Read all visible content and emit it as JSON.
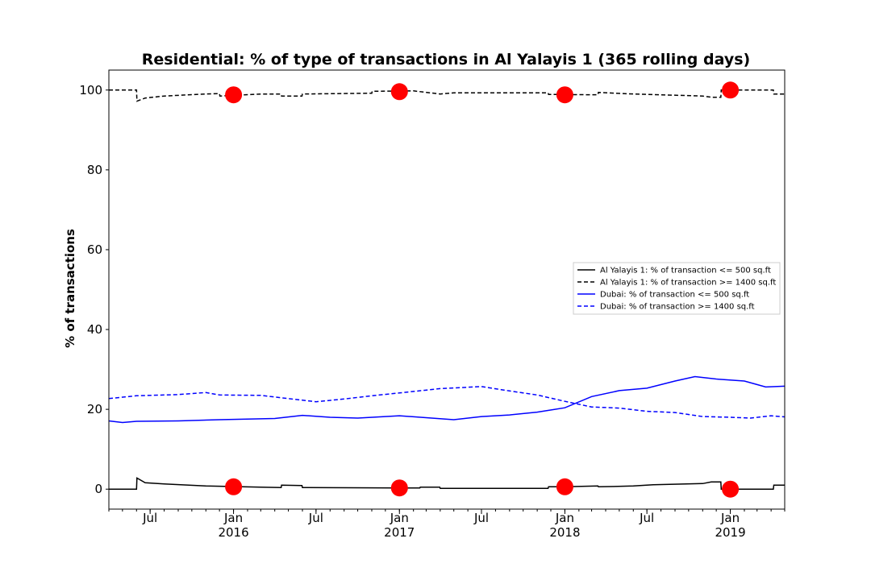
{
  "chart_data": {
    "type": "line",
    "title": "Residential: % of type of transactions in Al Yalayis 1 (365 rolling days)",
    "xlabel": "",
    "ylabel": "% of transactions",
    "xlim": [
      "2015-04-01",
      "2019-05-01"
    ],
    "ylim": [
      -5,
      105
    ],
    "y_ticks": [
      0,
      20,
      40,
      60,
      80,
      100
    ],
    "x_ticks": [
      {
        "date": "2015-07-01",
        "label": "Jul",
        "sublabel": ""
      },
      {
        "date": "2016-01-01",
        "label": "Jan",
        "sublabel": "2016"
      },
      {
        "date": "2016-07-01",
        "label": "Jul",
        "sublabel": ""
      },
      {
        "date": "2017-01-01",
        "label": "Jan",
        "sublabel": "2017"
      },
      {
        "date": "2017-07-01",
        "label": "Jul",
        "sublabel": ""
      },
      {
        "date": "2018-01-01",
        "label": "Jan",
        "sublabel": "2018"
      },
      {
        "date": "2018-07-01",
        "label": "Jul",
        "sublabel": ""
      },
      {
        "date": "2019-01-01",
        "label": "Jan",
        "sublabel": "2019"
      }
    ],
    "grid": false,
    "legend_position": "right",
    "series": [
      {
        "name": "Al Yalayis 1: % of transaction <= 500 sq.ft",
        "color": "#000000",
        "style": "solid",
        "points": [
          [
            "2015-04-01",
            0
          ],
          [
            "2015-06-01",
            0
          ],
          [
            "2015-06-02",
            2.8
          ],
          [
            "2015-06-20",
            1.6
          ],
          [
            "2015-08-01",
            1.3
          ],
          [
            "2015-11-01",
            0.8
          ],
          [
            "2016-03-01",
            0.5
          ],
          [
            "2016-04-15",
            0.4
          ],
          [
            "2016-04-16",
            1.0
          ],
          [
            "2016-05-31",
            0.9
          ],
          [
            "2016-06-01",
            0.4
          ],
          [
            "2017-01-01",
            0.3
          ],
          [
            "2017-02-15",
            0.3
          ],
          [
            "2017-02-16",
            0.5
          ],
          [
            "2017-03-31",
            0.5
          ],
          [
            "2017-04-01",
            0.2
          ],
          [
            "2017-11-25",
            0.2
          ],
          [
            "2017-11-26",
            0.6
          ],
          [
            "2018-01-01",
            0.6
          ],
          [
            "2018-03-15",
            0.8
          ],
          [
            "2018-03-16",
            0.6
          ],
          [
            "2018-06-01",
            0.8
          ],
          [
            "2018-07-15",
            1.1
          ],
          [
            "2018-11-01",
            1.4
          ],
          [
            "2018-11-20",
            1.8
          ],
          [
            "2018-12-11",
            1.8
          ],
          [
            "2018-12-12",
            0
          ],
          [
            "2019-04-06",
            0
          ],
          [
            "2019-04-07",
            1.0
          ],
          [
            "2019-05-01",
            1.0
          ]
        ]
      },
      {
        "name": "Al Yalayis 1: % of transaction >= 1400 sq.ft",
        "color": "#000000",
        "style": "dashed",
        "points": [
          [
            "2015-04-01",
            100
          ],
          [
            "2015-06-01",
            100
          ],
          [
            "2015-06-02",
            97.2
          ],
          [
            "2015-06-20",
            98.0
          ],
          [
            "2015-08-01",
            98.5
          ],
          [
            "2015-11-01",
            99.0
          ],
          [
            "2015-12-01",
            99.1
          ],
          [
            "2015-12-02",
            98.5
          ],
          [
            "2016-03-01",
            99.0
          ],
          [
            "2016-04-15",
            99.0
          ],
          [
            "2016-04-16",
            98.5
          ],
          [
            "2016-05-31",
            98.5
          ],
          [
            "2016-06-01",
            99.0
          ],
          [
            "2016-11-01",
            99.2
          ],
          [
            "2016-11-02",
            99.7
          ],
          [
            "2017-02-01",
            99.8
          ],
          [
            "2017-04-01",
            99.0
          ],
          [
            "2017-05-01",
            99.3
          ],
          [
            "2017-11-25",
            99.3
          ],
          [
            "2017-11-26",
            98.9
          ],
          [
            "2018-03-15",
            98.8
          ],
          [
            "2018-03-16",
            99.4
          ],
          [
            "2018-06-01",
            99.0
          ],
          [
            "2018-11-01",
            98.5
          ],
          [
            "2018-11-20",
            98.2
          ],
          [
            "2018-12-11",
            98.2
          ],
          [
            "2018-12-12",
            100
          ],
          [
            "2019-04-06",
            100
          ],
          [
            "2019-04-07",
            99.0
          ],
          [
            "2019-05-01",
            99.0
          ]
        ]
      },
      {
        "name": "Dubai: % of transaction <= 500 sq.ft",
        "color": "#0000ff",
        "style": "solid",
        "points": [
          [
            "2015-04-01",
            17.1
          ],
          [
            "2015-05-01",
            16.7
          ],
          [
            "2015-06-01",
            17.0
          ],
          [
            "2015-09-01",
            17.1
          ],
          [
            "2015-12-01",
            17.4
          ],
          [
            "2016-04-01",
            17.7
          ],
          [
            "2016-06-01",
            18.5
          ],
          [
            "2016-08-01",
            18.0
          ],
          [
            "2016-10-01",
            17.8
          ],
          [
            "2017-01-01",
            18.4
          ],
          [
            "2017-03-01",
            17.9
          ],
          [
            "2017-05-01",
            17.4
          ],
          [
            "2017-07-01",
            18.2
          ],
          [
            "2017-09-01",
            18.6
          ],
          [
            "2017-11-01",
            19.3
          ],
          [
            "2018-01-01",
            20.4
          ],
          [
            "2018-03-01",
            23.2
          ],
          [
            "2018-05-01",
            24.7
          ],
          [
            "2018-07-01",
            25.3
          ],
          [
            "2018-09-01",
            27.1
          ],
          [
            "2018-10-15",
            28.2
          ],
          [
            "2018-12-01",
            27.6
          ],
          [
            "2019-02-01",
            27.1
          ],
          [
            "2019-03-01",
            26.2
          ],
          [
            "2019-03-20",
            25.6
          ],
          [
            "2019-05-01",
            25.8
          ]
        ]
      },
      {
        "name": "Dubai: % of transaction >= 1400 sq.ft",
        "color": "#0000ff",
        "style": "dashed",
        "points": [
          [
            "2015-04-01",
            22.7
          ],
          [
            "2015-06-01",
            23.4
          ],
          [
            "2015-09-01",
            23.7
          ],
          [
            "2015-11-01",
            24.2
          ],
          [
            "2015-12-01",
            23.6
          ],
          [
            "2016-03-01",
            23.5
          ],
          [
            "2016-05-01",
            22.7
          ],
          [
            "2016-07-01",
            21.9
          ],
          [
            "2016-09-01",
            22.6
          ],
          [
            "2016-11-01",
            23.4
          ],
          [
            "2017-01-01",
            24.1
          ],
          [
            "2017-04-01",
            25.2
          ],
          [
            "2017-07-01",
            25.7
          ],
          [
            "2017-09-01",
            24.6
          ],
          [
            "2017-11-01",
            23.6
          ],
          [
            "2018-01-01",
            22.0
          ],
          [
            "2018-03-01",
            20.6
          ],
          [
            "2018-05-01",
            20.3
          ],
          [
            "2018-07-01",
            19.5
          ],
          [
            "2018-09-01",
            19.2
          ],
          [
            "2018-11-01",
            18.2
          ],
          [
            "2019-01-01",
            18.0
          ],
          [
            "2019-02-15",
            17.8
          ],
          [
            "2019-04-01",
            18.4
          ],
          [
            "2019-05-01",
            18.1
          ]
        ]
      }
    ],
    "markers": {
      "color": "#ff0000",
      "points": [
        [
          "2016-01-01",
          98.8
        ],
        [
          "2017-01-01",
          99.6
        ],
        [
          "2018-01-01",
          98.8
        ],
        [
          "2019-01-01",
          100
        ],
        [
          "2016-01-01",
          0.6
        ],
        [
          "2017-01-01",
          0.3
        ],
        [
          "2018-01-01",
          0.6
        ],
        [
          "2019-01-01",
          0
        ]
      ]
    }
  }
}
